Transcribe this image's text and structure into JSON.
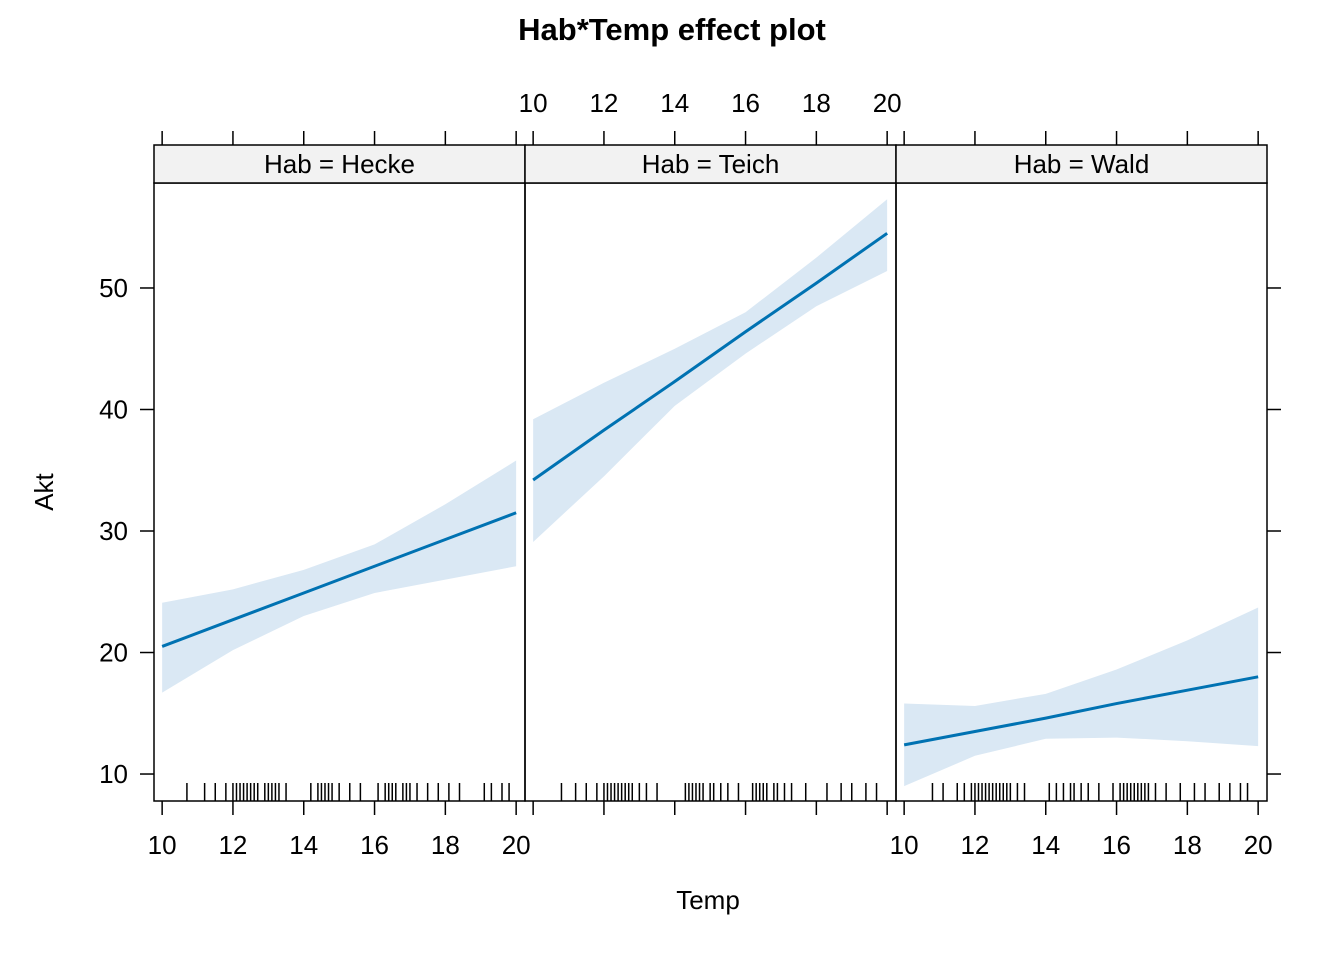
{
  "chart_data": {
    "type": "line",
    "title": "Hab*Temp effect plot",
    "x_label": "Temp",
    "y_label": "Akt",
    "xlim": [
      9.77,
      20.25
    ],
    "xticks": [
      10,
      12,
      14,
      16,
      18,
      20
    ],
    "ylim": [
      7.78,
      58.64
    ],
    "yticks": [
      10,
      20,
      30,
      40,
      50
    ],
    "color": "#0072B2",
    "band_color": "#dae8f4",
    "panels": [
      {
        "strip": "Hab = Hecke",
        "x": [
          10,
          12,
          14,
          16,
          18,
          20
        ],
        "values": [
          20.5,
          22.7,
          24.9,
          27.1,
          29.3,
          31.5
        ],
        "lower": [
          16.7,
          20.2,
          23.0,
          24.9,
          26.0,
          27.1
        ],
        "upper": [
          24.1,
          25.2,
          26.8,
          28.9,
          32.2,
          35.8
        ],
        "rug": [
          10.7,
          11.2,
          11.5,
          11.8,
          12.0,
          12.1,
          12.2,
          12.3,
          12.4,
          12.5,
          12.6,
          12.7,
          12.9,
          13.0,
          13.1,
          13.2,
          13.3,
          13.5,
          14.2,
          14.4,
          14.5,
          14.6,
          14.7,
          14.8,
          15.0,
          15.3,
          15.6,
          16.1,
          16.3,
          16.4,
          16.5,
          16.6,
          16.8,
          16.9,
          17.0,
          17.2,
          17.5,
          17.8,
          18.1,
          18.4,
          19.1,
          19.3,
          19.6,
          19.8
        ]
      },
      {
        "strip": "Hab = Teich",
        "x": [
          10,
          12,
          14,
          16,
          18,
          20
        ],
        "values": [
          34.2,
          38.3,
          42.3,
          46.4,
          50.4,
          54.5
        ],
        "lower": [
          29.1,
          34.5,
          40.3,
          44.6,
          48.5,
          51.4
        ],
        "upper": [
          39.2,
          42.2,
          45.0,
          48.0,
          52.5,
          57.3
        ],
        "rug": [
          10.8,
          11.2,
          11.5,
          11.8,
          12.0,
          12.1,
          12.2,
          12.3,
          12.4,
          12.5,
          12.6,
          12.7,
          12.8,
          13.0,
          13.2,
          13.5,
          14.3,
          14.4,
          14.5,
          14.6,
          14.7,
          14.8,
          15.0,
          15.1,
          15.3,
          15.5,
          15.8,
          16.2,
          16.3,
          16.4,
          16.5,
          16.6,
          16.8,
          16.9,
          17.1,
          17.3,
          17.7,
          18.3,
          18.7,
          19.0,
          19.4,
          19.7
        ]
      },
      {
        "strip": "Hab = Wald",
        "x": [
          10,
          12,
          14,
          16,
          18,
          20
        ],
        "values": [
          12.4,
          13.5,
          14.6,
          15.8,
          16.9,
          18.0
        ],
        "lower": [
          9.0,
          11.5,
          12.9,
          13.0,
          12.7,
          12.3
        ],
        "upper": [
          15.8,
          15.6,
          16.6,
          18.6,
          21.0,
          23.7
        ],
        "rug": [
          10.8,
          11.1,
          11.5,
          11.7,
          11.9,
          12.0,
          12.1,
          12.2,
          12.3,
          12.4,
          12.5,
          12.6,
          12.7,
          12.8,
          12.9,
          13.0,
          13.2,
          13.4,
          14.1,
          14.3,
          14.5,
          14.7,
          14.8,
          15.0,
          15.2,
          15.5,
          15.9,
          16.1,
          16.2,
          16.3,
          16.4,
          16.5,
          16.6,
          16.7,
          16.8,
          16.9,
          17.1,
          17.4,
          17.8,
          18.2,
          18.5,
          18.9,
          19.2,
          19.5,
          19.7
        ]
      }
    ]
  }
}
